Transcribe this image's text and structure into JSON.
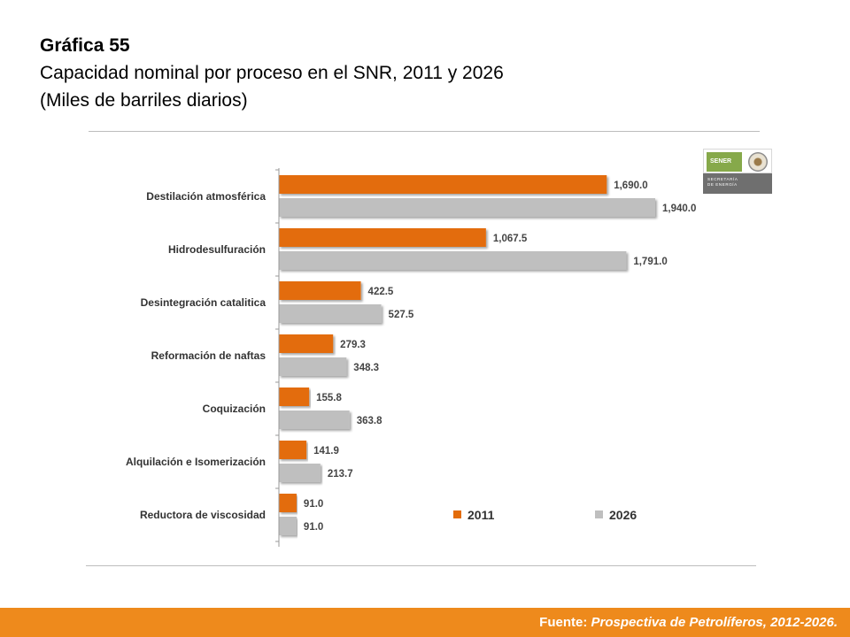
{
  "title": {
    "line1": "Gráfica 55",
    "line2": "Capacidad nominal por  proceso en el SNR, 2011 y 2026",
    "line3": "(Miles de barriles diarios)"
  },
  "logo": {
    "name": "SENER",
    "line1": "SECRETARÍA",
    "line2": "DE ENERGÍA"
  },
  "footer": {
    "prefix": "Fuente: ",
    "source": "Prospectiva de Petrolíferos, 2012-2026."
  },
  "colors": {
    "s2011": "#e36c0a",
    "s2026": "#bfbfbf"
  },
  "chart_data": {
    "type": "bar",
    "orientation": "horizontal",
    "categories": [
      "Destilación atmosférica",
      "Hidrodesulfuración",
      "Desintegración catalitica",
      "Reformación de naftas",
      "Coquización",
      "Alquilación e Isomerización",
      "Reductora de viscosidad"
    ],
    "series": [
      {
        "name": "2011",
        "values": [
          1690.0,
          1067.5,
          422.5,
          279.3,
          155.8,
          141.9,
          91.0
        ],
        "labels": [
          "1,690.0",
          "1,067.5",
          "422.5",
          "279.3",
          "155.8",
          "141.9",
          "91.0"
        ]
      },
      {
        "name": "2026",
        "values": [
          1940.0,
          1791.0,
          527.5,
          348.3,
          363.8,
          213.7,
          91.0
        ],
        "labels": [
          "1,940.0",
          "1,791.0",
          "527.5",
          "348.3",
          "363.8",
          "213.7",
          "91.0"
        ]
      }
    ],
    "xlim": [
      0,
      1940
    ],
    "grid": false,
    "legend": "bottom-right"
  }
}
